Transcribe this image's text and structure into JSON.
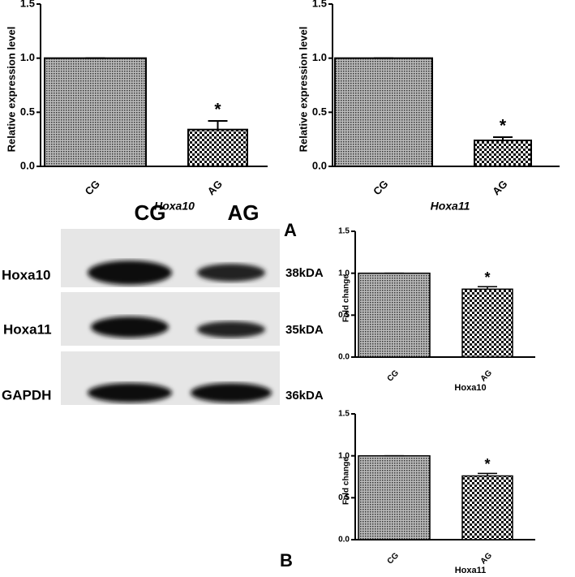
{
  "chart_data": [
    {
      "type": "bar",
      "y_label": "Relative expression level",
      "x_label": "Hoxa10",
      "categories": [
        "CG",
        "AG"
      ],
      "values": [
        1.0,
        0.34
      ],
      "errors": [
        0,
        0.08
      ],
      "annotation": "*",
      "ylim": [
        0,
        1.5
      ],
      "yticks": [
        {
          "value": 0,
          "label": "0.0"
        },
        {
          "value": 0.5,
          "label": "0.5"
        },
        {
          "value": 1,
          "label": "1.0"
        },
        {
          "value": 1.5,
          "label": "1.5"
        }
      ]
    },
    {
      "type": "bar",
      "y_label": "Relative expression level",
      "x_label": "Hoxa11",
      "categories": [
        "CG",
        "AG"
      ],
      "values": [
        1.0,
        0.24
      ],
      "errors": [
        0,
        0.03
      ],
      "annotation": "*",
      "ylim": [
        0,
        1.5
      ],
      "yticks": [
        {
          "value": 0,
          "label": "0.0"
        },
        {
          "value": 0.5,
          "label": "0.5"
        },
        {
          "value": 1,
          "label": "1.0"
        },
        {
          "value": 1.5,
          "label": "1.5"
        }
      ]
    },
    {
      "type": "bar",
      "y_label": "Fold change",
      "x_label": "Hoxa10",
      "categories": [
        "CG",
        "AG"
      ],
      "values": [
        1.0,
        0.81
      ],
      "errors": [
        0,
        0.03
      ],
      "annotation": "*",
      "ylim": [
        0,
        1.5
      ],
      "yticks": [
        {
          "value": 0,
          "label": "0.0"
        },
        {
          "value": 0.5,
          "label": "0.5"
        },
        {
          "value": 1,
          "label": "1.0"
        },
        {
          "value": 1.5,
          "label": "1.5"
        }
      ]
    },
    {
      "type": "bar",
      "y_label": "Fold change",
      "x_label": "Hoxa11",
      "categories": [
        "CG",
        "AG"
      ],
      "values": [
        1.0,
        0.76
      ],
      "errors": [
        0,
        0.03
      ],
      "annotation": "*",
      "ylim": [
        0,
        1.5
      ],
      "yticks": [
        {
          "value": 0,
          "label": "0.0"
        },
        {
          "value": 0.5,
          "label": "0.5"
        },
        {
          "value": 1,
          "label": "1.0"
        },
        {
          "value": 1.5,
          "label": "1.5"
        }
      ]
    }
  ],
  "panels": [
    "A",
    "B"
  ],
  "blot": {
    "lanes": [
      "CG",
      "AG"
    ],
    "rows": [
      {
        "label": "Hoxa10",
        "size": "38kDA"
      },
      {
        "label": "Hoxa11",
        "size": "35kDA"
      },
      {
        "label": "GAPDH",
        "size": "36kDA"
      }
    ]
  }
}
